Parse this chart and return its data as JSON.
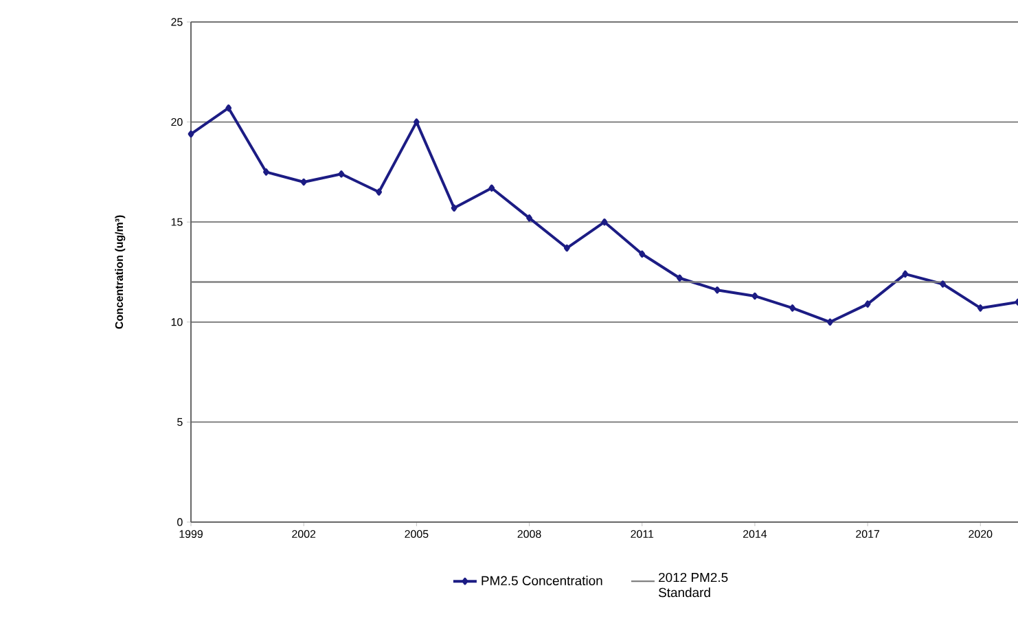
{
  "chart_data": {
    "type": "line",
    "ylabel": "Concentration (ug/m³)",
    "x": [
      1999,
      2000,
      2001,
      2002,
      2003,
      2004,
      2005,
      2006,
      2007,
      2008,
      2009,
      2010,
      2011,
      2012,
      2013,
      2014,
      2015,
      2016,
      2017,
      2018,
      2019,
      2020,
      2021
    ],
    "series": [
      {
        "name": "PM2.5 Concentration",
        "color": "#1c1c84",
        "values": [
          19.4,
          20.7,
          17.5,
          17.0,
          17.4,
          16.5,
          20.0,
          15.7,
          16.7,
          15.2,
          13.7,
          15.0,
          13.4,
          12.2,
          11.6,
          11.3,
          10.7,
          10.0,
          10.9,
          12.4,
          11.9,
          10.7,
          11.0
        ]
      }
    ],
    "ref_lines": [
      {
        "axis": "y",
        "value": 12,
        "label": "2012 PM2.5 Standard",
        "color": "#808080"
      }
    ],
    "xlim": [
      1999,
      2021
    ],
    "xticks": [
      1999,
      2002,
      2005,
      2008,
      2011,
      2014,
      2017,
      2020
    ],
    "ylim": [
      0,
      25
    ],
    "yticks": [
      0,
      5,
      10,
      15,
      20,
      25
    ],
    "grid": "y",
    "legend": "bottom",
    "marker": "diamond",
    "line_style": "solid"
  }
}
